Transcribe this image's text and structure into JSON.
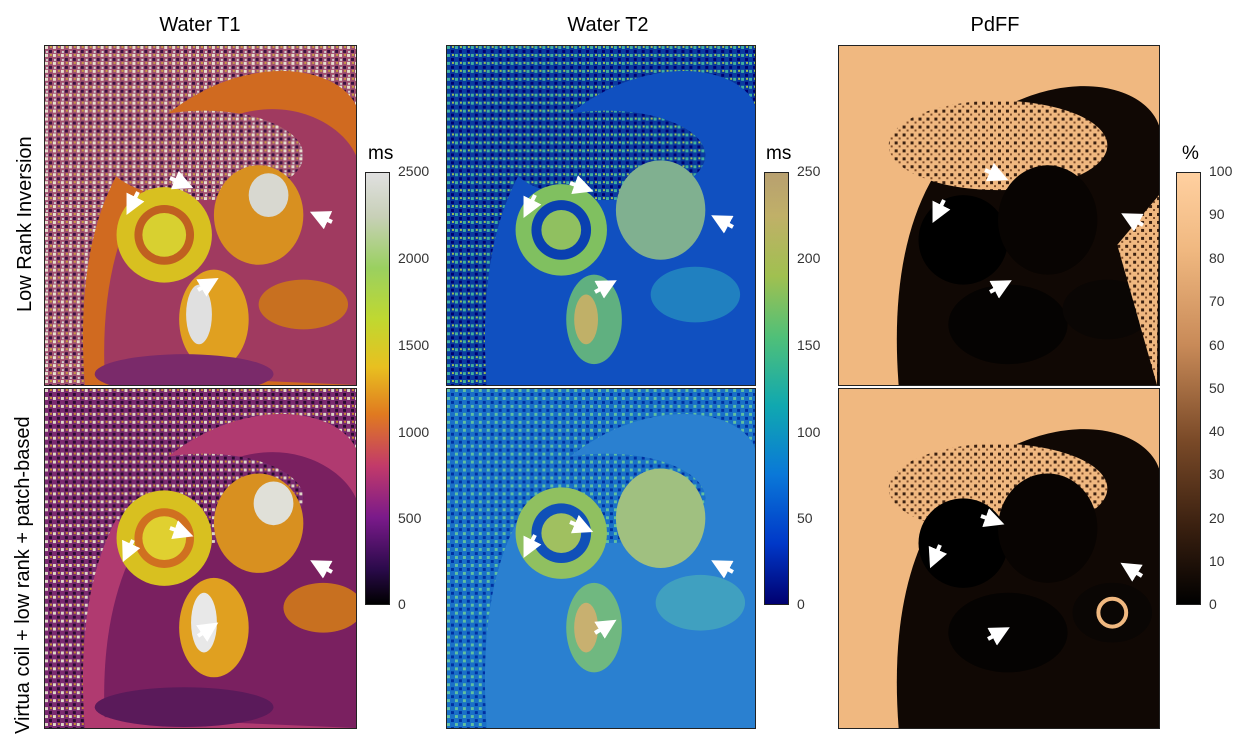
{
  "columns": [
    {
      "title": "Water T1",
      "unit": "ms",
      "ticks": [
        "2500",
        "2000",
        "1500",
        "1000",
        "500",
        "0"
      ]
    },
    {
      "title": "Water T2",
      "unit": "ms",
      "ticks": [
        "250",
        "200",
        "150",
        "100",
        "50",
        "0"
      ]
    },
    {
      "title": "PdFF",
      "unit": "%",
      "ticks": [
        "100",
        "90",
        "80",
        "70",
        "60",
        "50",
        "40",
        "30",
        "20",
        "10",
        "0"
      ]
    }
  ],
  "rows": [
    {
      "label": "Low Rank Inversion"
    },
    {
      "label": "Virtua coil + low rank + patch-based"
    }
  ],
  "colors": {
    "t1_colormap": [
      "#000000",
      "#2a0a4a",
      "#7a1a8a",
      "#c23a6a",
      "#e07a20",
      "#e8c020",
      "#c0d830",
      "#9ad060",
      "#c8d0b8",
      "#e0e0e0"
    ],
    "t2_colormap": [
      "#000070",
      "#0038c8",
      "#0a78d8",
      "#10a8b0",
      "#50c078",
      "#a0c050",
      "#c0b068",
      "#b8a070"
    ],
    "pdff_colormap": [
      "#000000",
      "#3a2010",
      "#7a4a28",
      "#c88a58",
      "#f0b880",
      "#ffd0a0"
    ]
  }
}
